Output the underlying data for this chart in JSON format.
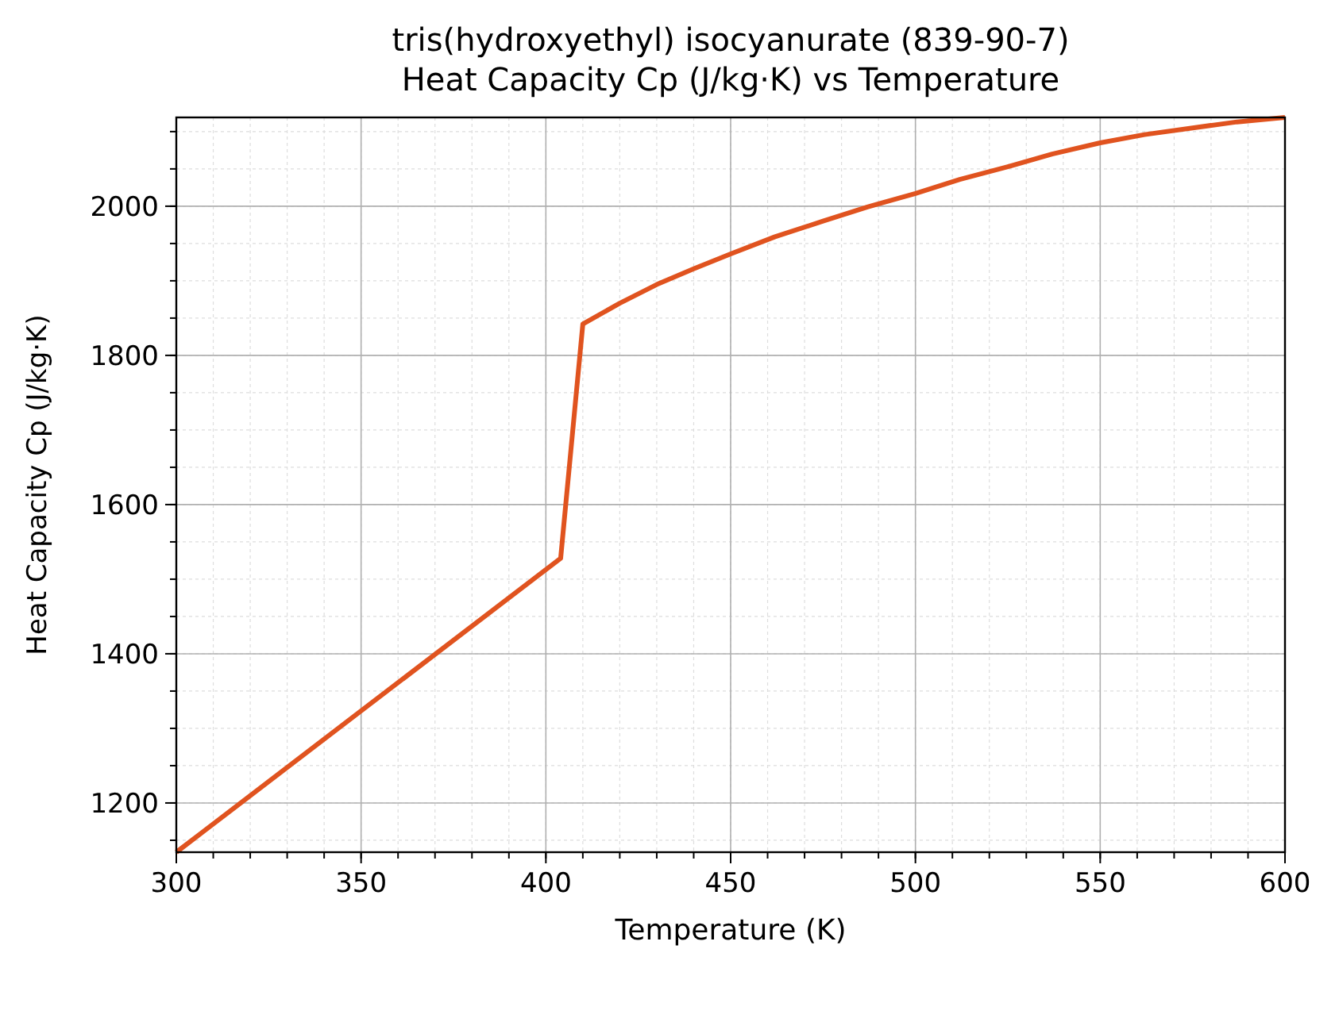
{
  "chart_data": {
    "type": "line",
    "title": "tris(hydroxyethyl) isocyanurate (839-90-7)\nHeat Capacity Cp (J/kg·K) vs Temperature",
    "xlabel": "Temperature (K)",
    "ylabel": "Heat Capacity Cp (J/kg·K)",
    "x": [
      300,
      404,
      410,
      420,
      430,
      440,
      450,
      462,
      475,
      487,
      500,
      512,
      525,
      537,
      550,
      562,
      575,
      587,
      600
    ],
    "series": [
      {
        "color": "#e0531f",
        "values": [
          1134,
          1528,
          1842,
          1870,
          1895,
          1916,
          1936,
          1959,
          1980,
          1999,
          2017,
          2036,
          2053,
          2070,
          2085,
          2096,
          2105,
          2113,
          2119
        ]
      }
    ],
    "xlim": [
      300,
      600
    ],
    "xticks": [
      300,
      350,
      400,
      450,
      500,
      550,
      600
    ],
    "ylim": [
      1134,
      2119
    ],
    "yticks": [
      1200,
      1400,
      1600,
      1800,
      2000
    ],
    "grid": true,
    "marker": "none",
    "line_style": "solid"
  }
}
